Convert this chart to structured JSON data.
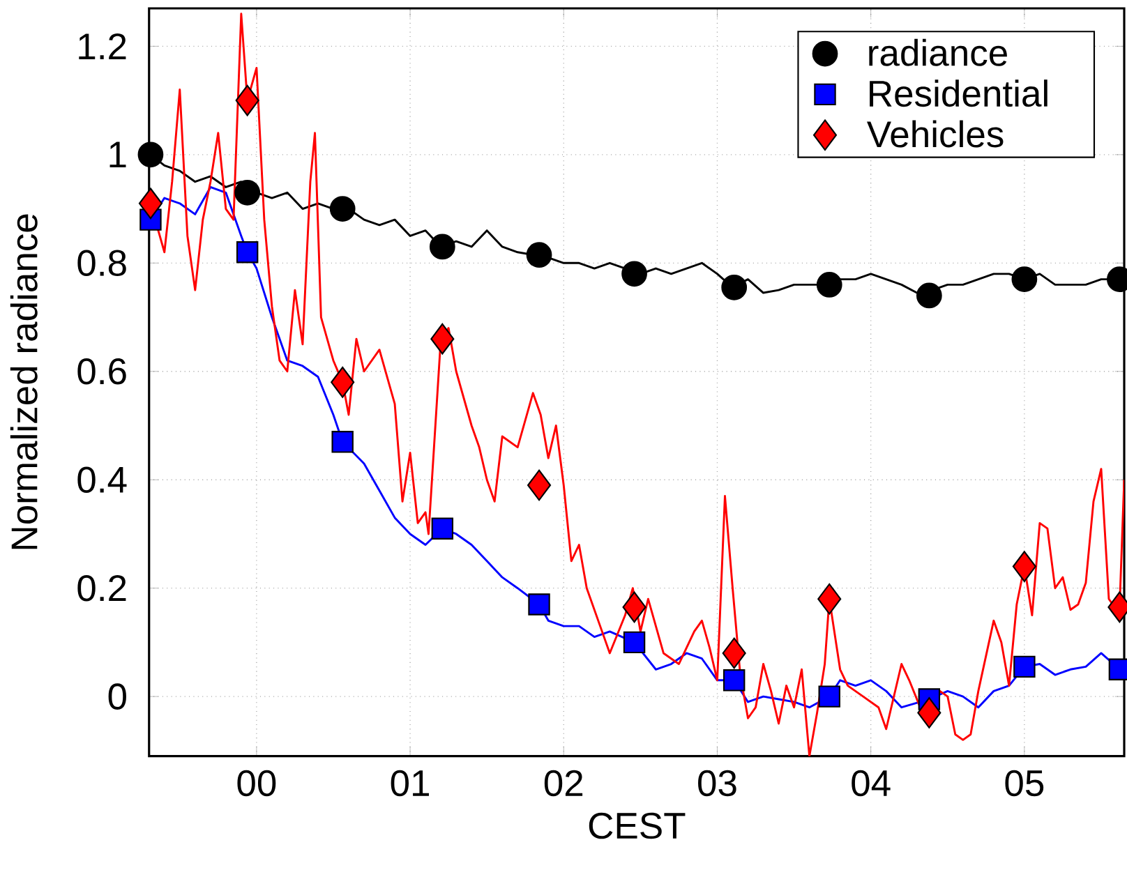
{
  "chart_data": {
    "type": "line",
    "xlabel": "CEST",
    "ylabel": "Normalized radiance",
    "xlim": [
      -0.7,
      5.65
    ],
    "ylim": [
      -0.11,
      1.27
    ],
    "xticks": [
      {
        "value": 0,
        "label": "00"
      },
      {
        "value": 1,
        "label": "01"
      },
      {
        "value": 2,
        "label": "02"
      },
      {
        "value": 3,
        "label": "03"
      },
      {
        "value": 4,
        "label": "04"
      },
      {
        "value": 5,
        "label": "05"
      }
    ],
    "yticks": [
      0,
      0.2,
      0.4,
      0.6,
      0.8,
      1,
      1.2
    ],
    "grid": true,
    "legend": "top right",
    "series": [
      {
        "type": "line",
        "marker": "none",
        "line_style": "solid",
        "color": "#000000",
        "x": [
          -0.69,
          -0.6,
          -0.5,
          -0.4,
          -0.3,
          -0.2,
          -0.1,
          0.0,
          0.1,
          0.2,
          0.3,
          0.4,
          0.5,
          0.6,
          0.7,
          0.8,
          0.9,
          1.0,
          1.1,
          1.2,
          1.3,
          1.4,
          1.5,
          1.6,
          1.7,
          1.8,
          1.9,
          2.0,
          2.1,
          2.2,
          2.3,
          2.4,
          2.5,
          2.6,
          2.7,
          2.8,
          2.9,
          3.0,
          3.1,
          3.2,
          3.3,
          3.4,
          3.5,
          3.6,
          3.7,
          3.8,
          3.9,
          4.0,
          4.1,
          4.2,
          4.3,
          4.4,
          4.5,
          4.6,
          4.7,
          4.8,
          4.9,
          5.0,
          5.1,
          5.2,
          5.3,
          5.4,
          5.5,
          5.65
        ],
        "values": [
          1.0,
          0.98,
          0.97,
          0.95,
          0.96,
          0.94,
          0.95,
          0.93,
          0.92,
          0.93,
          0.9,
          0.91,
          0.9,
          0.9,
          0.88,
          0.87,
          0.88,
          0.85,
          0.86,
          0.83,
          0.84,
          0.83,
          0.86,
          0.83,
          0.82,
          0.815,
          0.81,
          0.8,
          0.8,
          0.79,
          0.8,
          0.79,
          0.78,
          0.79,
          0.78,
          0.79,
          0.8,
          0.78,
          0.755,
          0.77,
          0.745,
          0.75,
          0.76,
          0.76,
          0.76,
          0.77,
          0.77,
          0.78,
          0.77,
          0.76,
          0.745,
          0.75,
          0.76,
          0.76,
          0.77,
          0.78,
          0.78,
          0.77,
          0.78,
          0.76,
          0.76,
          0.76,
          0.77,
          0.77
        ]
      },
      {
        "type": "line",
        "marker": "none",
        "line_style": "solid",
        "color": "#0000ff",
        "x": [
          -0.69,
          -0.6,
          -0.5,
          -0.4,
          -0.3,
          -0.2,
          -0.1,
          -0.06,
          0.0,
          0.1,
          0.2,
          0.3,
          0.4,
          0.5,
          0.56,
          0.7,
          0.8,
          0.9,
          1.0,
          1.1,
          1.21,
          1.3,
          1.4,
          1.5,
          1.6,
          1.7,
          1.84,
          1.9,
          2.0,
          2.1,
          2.2,
          2.3,
          2.46,
          2.6,
          2.7,
          2.8,
          2.9,
          3.0,
          3.11,
          3.2,
          3.3,
          3.4,
          3.5,
          3.6,
          3.73,
          3.8,
          3.9,
          4.0,
          4.1,
          4.2,
          4.38,
          4.5,
          4.6,
          4.7,
          4.8,
          4.9,
          5.0,
          5.1,
          5.2,
          5.3,
          5.4,
          5.5,
          5.62,
          5.65
        ],
        "values": [
          0.88,
          0.92,
          0.91,
          0.89,
          0.94,
          0.93,
          0.85,
          0.82,
          0.79,
          0.7,
          0.62,
          0.61,
          0.59,
          0.52,
          0.47,
          0.43,
          0.38,
          0.33,
          0.3,
          0.28,
          0.31,
          0.3,
          0.28,
          0.25,
          0.22,
          0.2,
          0.17,
          0.14,
          0.13,
          0.13,
          0.11,
          0.12,
          0.1,
          0.05,
          0.06,
          0.08,
          0.07,
          0.03,
          0.03,
          -0.01,
          0.0,
          -0.005,
          -0.01,
          -0.02,
          0.0,
          0.03,
          0.02,
          0.03,
          0.01,
          -0.02,
          -0.005,
          0.01,
          0.0,
          -0.02,
          0.01,
          0.02,
          0.055,
          0.06,
          0.04,
          0.05,
          0.055,
          0.08,
          0.05,
          0.06
        ]
      },
      {
        "type": "line",
        "marker": "none",
        "line_style": "solid",
        "color": "#ff0000",
        "x": [
          -0.69,
          -0.6,
          -0.55,
          -0.5,
          -0.45,
          -0.4,
          -0.35,
          -0.3,
          -0.25,
          -0.2,
          -0.15,
          -0.1,
          -0.06,
          0.0,
          0.05,
          0.1,
          0.15,
          0.2,
          0.25,
          0.3,
          0.35,
          0.38,
          0.42,
          0.5,
          0.56,
          0.6,
          0.65,
          0.7,
          0.8,
          0.9,
          0.95,
          1.0,
          1.05,
          1.1,
          1.12,
          1.2,
          1.25,
          1.3,
          1.4,
          1.45,
          1.5,
          1.55,
          1.6,
          1.7,
          1.8,
          1.85,
          1.9,
          1.95,
          2.0,
          2.05,
          2.1,
          2.15,
          2.25,
          2.3,
          2.4,
          2.45,
          2.5,
          2.55,
          2.65,
          2.75,
          2.85,
          2.9,
          2.95,
          3.0,
          3.05,
          3.1,
          3.15,
          3.2,
          3.25,
          3.3,
          3.35,
          3.4,
          3.45,
          3.5,
          3.55,
          3.6,
          3.65,
          3.7,
          3.73,
          3.8,
          3.85,
          3.95,
          4.05,
          4.1,
          4.2,
          4.25,
          4.35,
          4.45,
          4.5,
          4.55,
          4.6,
          4.65,
          4.7,
          4.8,
          4.85,
          4.9,
          4.95,
          5.0,
          5.05,
          5.1,
          5.15,
          5.2,
          5.25,
          5.3,
          5.35,
          5.4,
          5.45,
          5.5,
          5.55,
          5.6,
          5.62,
          5.65
        ],
        "values": [
          0.91,
          0.82,
          0.95,
          1.12,
          0.85,
          0.75,
          0.88,
          0.95,
          1.04,
          0.9,
          0.88,
          1.26,
          1.1,
          1.16,
          0.88,
          0.72,
          0.62,
          0.6,
          0.75,
          0.65,
          0.95,
          1.04,
          0.7,
          0.62,
          0.58,
          0.52,
          0.66,
          0.6,
          0.64,
          0.54,
          0.36,
          0.45,
          0.32,
          0.34,
          0.3,
          0.66,
          0.68,
          0.6,
          0.5,
          0.46,
          0.4,
          0.36,
          0.48,
          0.46,
          0.56,
          0.52,
          0.44,
          0.5,
          0.39,
          0.25,
          0.28,
          0.2,
          0.12,
          0.08,
          0.15,
          0.2,
          0.12,
          0.18,
          0.08,
          0.06,
          0.12,
          0.14,
          0.09,
          0.03,
          0.37,
          0.2,
          0.04,
          -0.04,
          -0.02,
          0.06,
          0.01,
          -0.05,
          0.02,
          -0.02,
          0.05,
          -0.11,
          -0.03,
          0.06,
          0.18,
          0.05,
          0.02,
          0.0,
          -0.02,
          -0.06,
          0.06,
          0.03,
          -0.04,
          0.01,
          0.0,
          -0.07,
          -0.08,
          -0.07,
          0.01,
          0.14,
          0.1,
          0.02,
          0.17,
          0.24,
          0.15,
          0.32,
          0.31,
          0.2,
          0.22,
          0.16,
          0.17,
          0.21,
          0.36,
          0.42,
          0.18,
          0.16,
          0.165,
          0.4
        ]
      },
      {
        "type": "scatter",
        "name": "radiance",
        "marker": "circle",
        "color": "#000000",
        "x": [
          -0.69,
          -0.06,
          0.56,
          1.21,
          1.84,
          2.46,
          3.11,
          3.73,
          4.38,
          5.0,
          5.62
        ],
        "values": [
          1.0,
          0.93,
          0.9,
          0.83,
          0.815,
          0.78,
          0.755,
          0.76,
          0.74,
          0.77,
          0.77
        ]
      },
      {
        "type": "scatter",
        "name": "Residential",
        "marker": "square",
        "color": "#0000ff",
        "x": [
          -0.69,
          -0.06,
          0.56,
          1.21,
          1.84,
          2.46,
          3.11,
          3.73,
          4.38,
          5.0,
          5.62
        ],
        "values": [
          0.88,
          0.82,
          0.47,
          0.31,
          0.17,
          0.1,
          0.03,
          0.0,
          -0.005,
          0.055,
          0.05
        ]
      },
      {
        "type": "scatter",
        "name": "Vehicles",
        "marker": "diamond",
        "color": "#ff0000",
        "x": [
          -0.69,
          -0.06,
          0.56,
          1.21,
          1.84,
          2.46,
          3.11,
          3.73,
          4.38,
          5.0,
          5.62
        ],
        "values": [
          0.91,
          1.1,
          0.58,
          0.66,
          0.39,
          0.165,
          0.08,
          0.18,
          -0.03,
          0.24,
          0.165
        ]
      }
    ]
  }
}
